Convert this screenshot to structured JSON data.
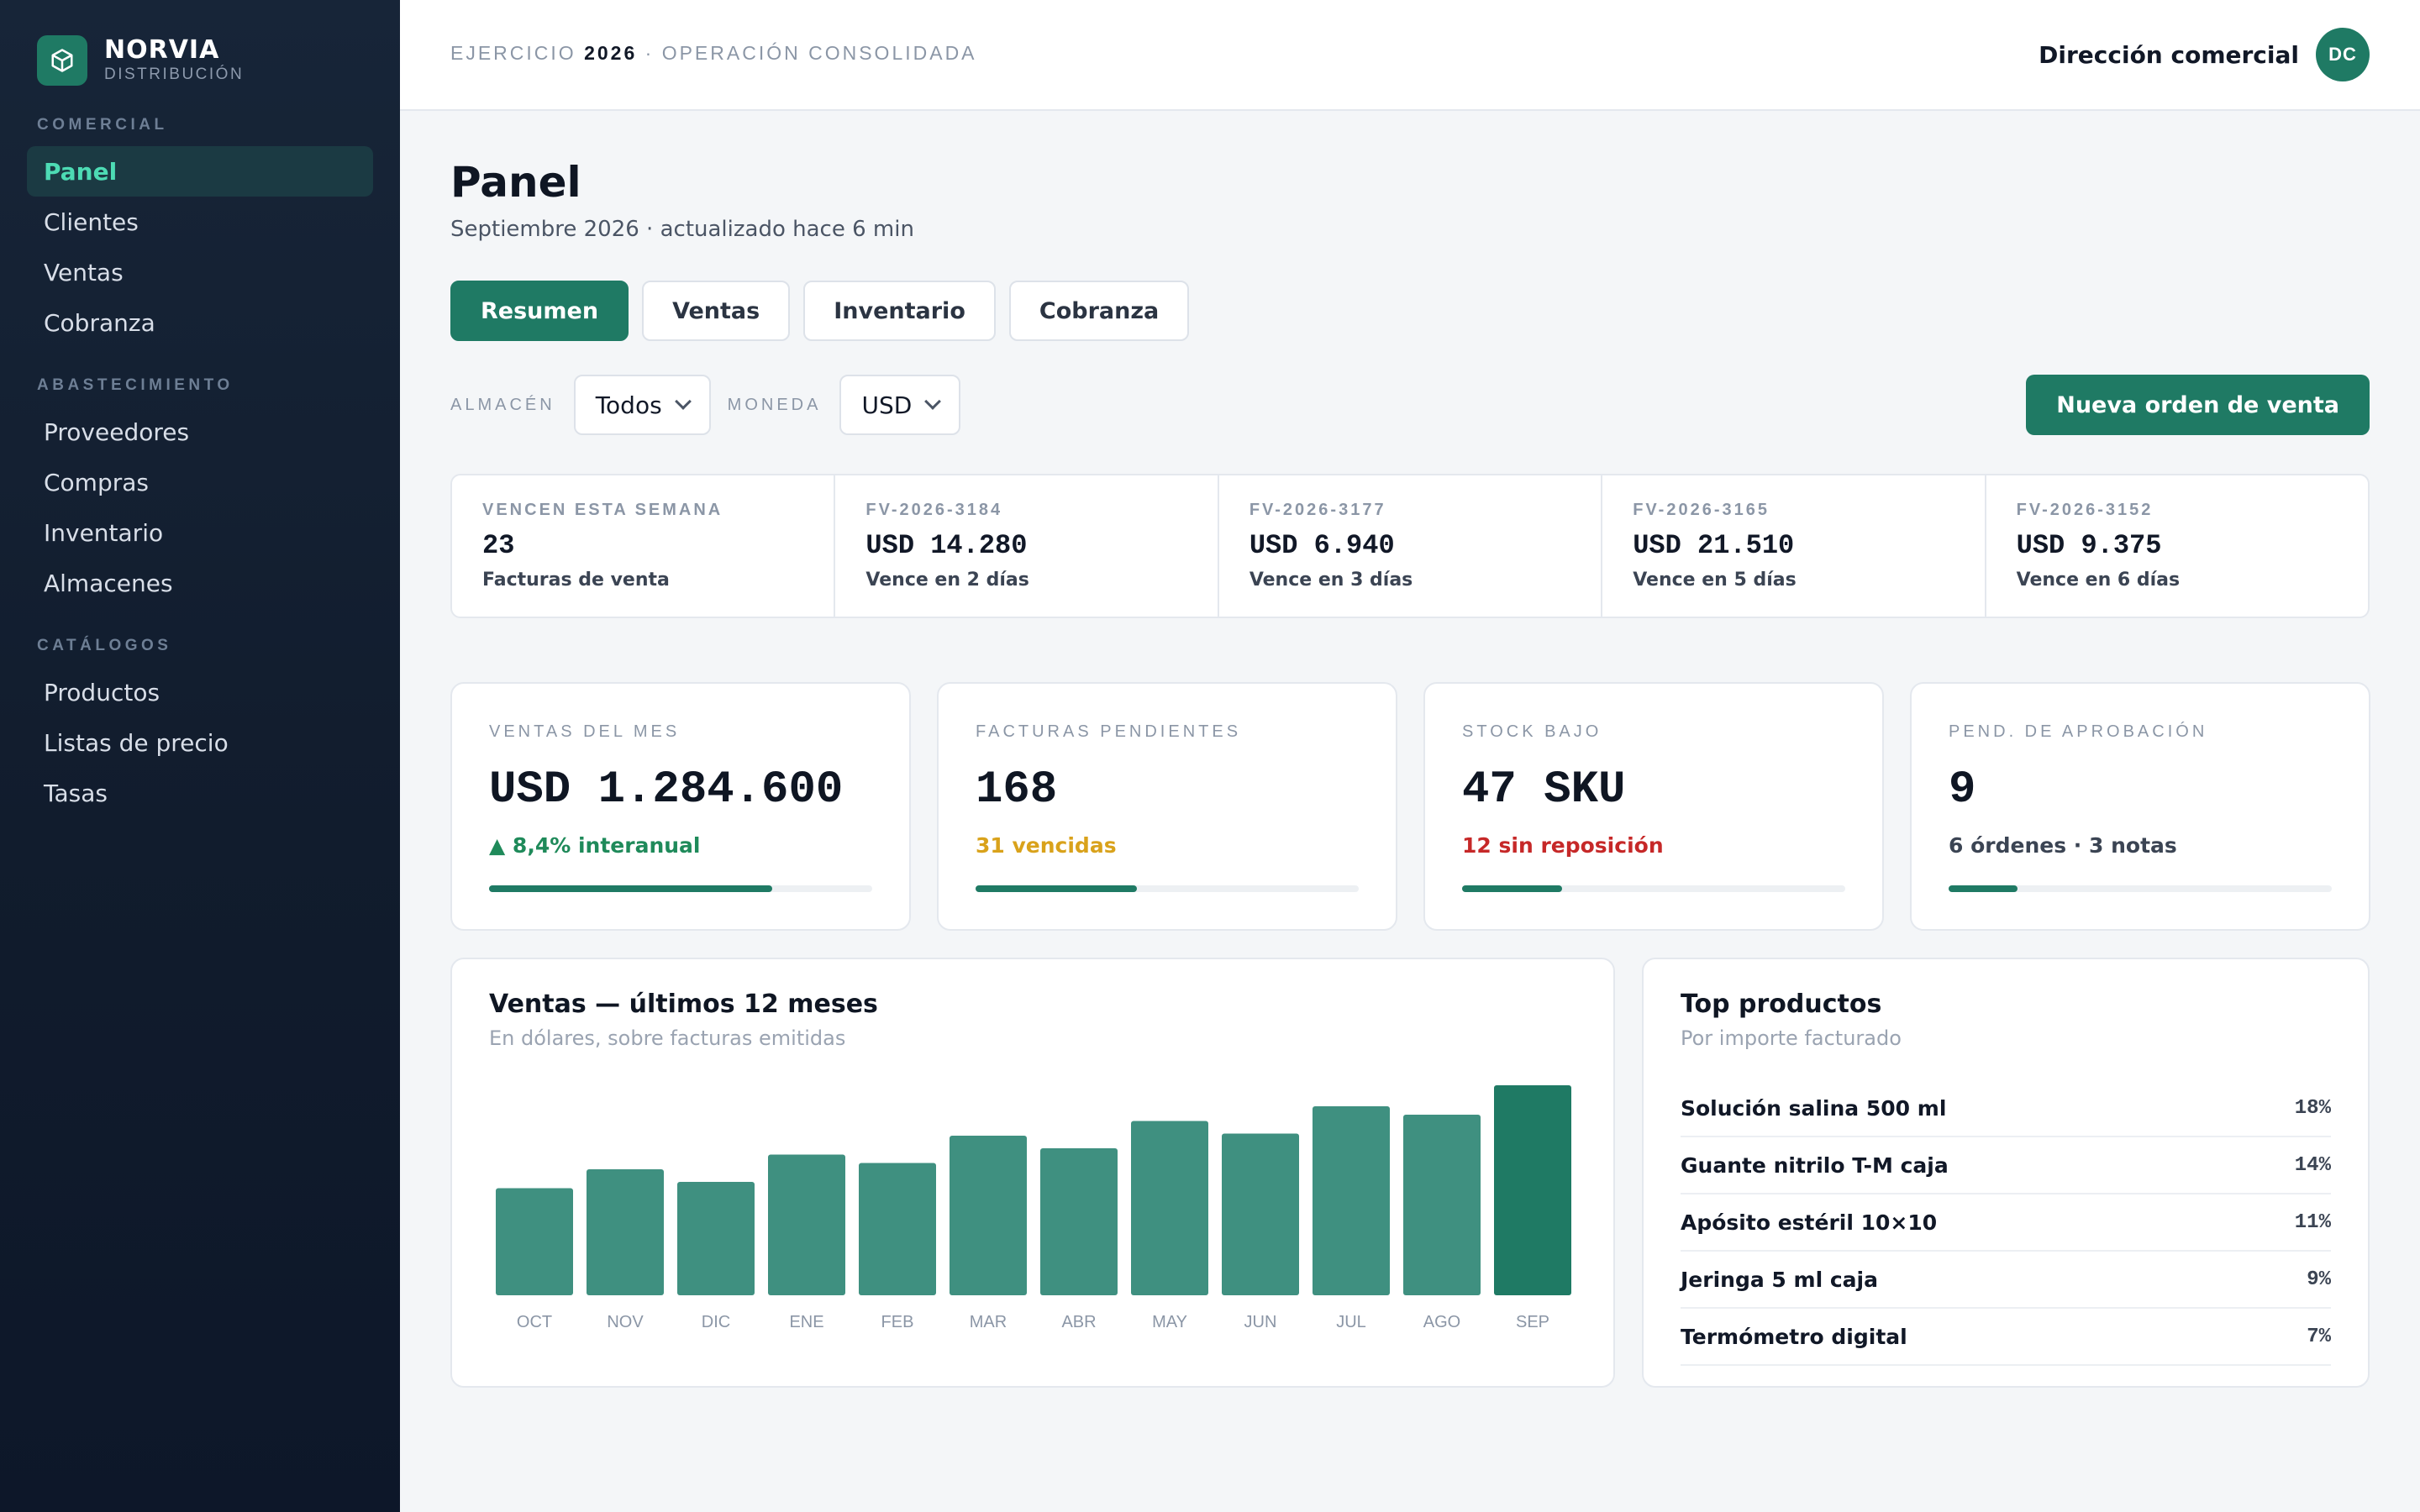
{
  "brand": {
    "name": "NORVIA",
    "sub": "DISTRIBUCIÓN",
    "logo_icon": "cube-icon"
  },
  "nav": {
    "sections": [
      {
        "title": "COMERCIAL",
        "items": [
          "Panel",
          "Clientes",
          "Ventas",
          "Cobranza"
        ]
      },
      {
        "title": "ABASTECIMIENTO",
        "items": [
          "Proveedores",
          "Compras",
          "Inventario",
          "Almacenes"
        ]
      },
      {
        "title": "CATÁLOGOS",
        "items": [
          "Productos",
          "Listas de precio",
          "Tasas"
        ]
      }
    ],
    "active": "Panel"
  },
  "topbar": {
    "prefix": "EJERCICIO ",
    "year": "2026",
    "suffix": " · OPERACIÓN CONSOLIDADA",
    "user_name": "Dirección comercial",
    "avatar_initials": "DC"
  },
  "page": {
    "title": "Panel",
    "subtitle": "Septiembre 2026 · actualizado hace 6 min"
  },
  "tabs": [
    {
      "label": "Resumen",
      "active": true
    },
    {
      "label": "Ventas",
      "active": false
    },
    {
      "label": "Inventario",
      "active": false
    },
    {
      "label": "Cobranza",
      "active": false
    }
  ],
  "filters": {
    "warehouse_label": "ALMACÉN",
    "warehouse_value": "Todos",
    "currency_label": "MONEDA",
    "currency_value": "USD"
  },
  "primary_action": "Nueva orden de venta",
  "due": [
    {
      "label": "VENCEN ESTA SEMANA",
      "value": "23",
      "note": "Facturas de venta"
    },
    {
      "label": "FV-2026-3184",
      "value": "USD 14.280",
      "note": "Vence en 2 días"
    },
    {
      "label": "FV-2026-3177",
      "value": "USD 6.940",
      "note": "Vence en 3 días"
    },
    {
      "label": "FV-2026-3165",
      "value": "USD 21.510",
      "note": "Vence en 5 días"
    },
    {
      "label": "FV-2026-3152",
      "value": "USD 9.375",
      "note": "Vence en 6 días"
    }
  ],
  "kpis": [
    {
      "label": "VENTAS DEL MES",
      "value": "USD 1.284.600",
      "note": "▲ 8,4% interanual",
      "note_color": "#1f8a5a",
      "progress": 0.74
    },
    {
      "label": "FACTURAS PENDIENTES",
      "value": "168",
      "note": "31 vencidas",
      "note_color": "#d9a21b",
      "progress": 0.42
    },
    {
      "label": "STOCK BAJO",
      "value": "47 SKU",
      "note": "12 sin reposición",
      "note_color": "#c62828",
      "progress": 0.26
    },
    {
      "label": "PEND. DE APROBACIÓN",
      "value": "9",
      "note": "6 órdenes · 3 notas",
      "note_color": "#3b4453",
      "progress": 0.18
    }
  ],
  "sales_panel": {
    "title": "Ventas — últimos 12 meses",
    "subtitle": "En dólares, sobre facturas emitidas"
  },
  "chart_data": {
    "type": "bar",
    "categories": [
      "OCT",
      "NOV",
      "DIC",
      "ENE",
      "FEB",
      "MAR",
      "ABR",
      "MAY",
      "JUN",
      "JUL",
      "AGO",
      "SEP"
    ],
    "values": [
      0.51,
      0.6,
      0.54,
      0.67,
      0.63,
      0.76,
      0.7,
      0.83,
      0.77,
      0.9,
      0.86,
      1.0
    ],
    "title": "Ventas — últimos 12 meses",
    "xlabel": "",
    "ylabel": "",
    "ylim": [
      0,
      1
    ],
    "grid": false,
    "bar_color": "#3f9080",
    "highlight_color": "#1f7a64",
    "highlight_index": 11
  },
  "top_panel": {
    "title": "Top productos",
    "subtitle": "Por importe facturado",
    "items": [
      {
        "name": "Solución salina 500 ml",
        "pct": "18%"
      },
      {
        "name": "Guante nitrilo T-M caja",
        "pct": "14%"
      },
      {
        "name": "Apósito estéril 10×10",
        "pct": "11%"
      },
      {
        "name": "Jeringa 5 ml caja",
        "pct": "9%"
      },
      {
        "name": "Termómetro digital",
        "pct": "7%"
      }
    ]
  }
}
